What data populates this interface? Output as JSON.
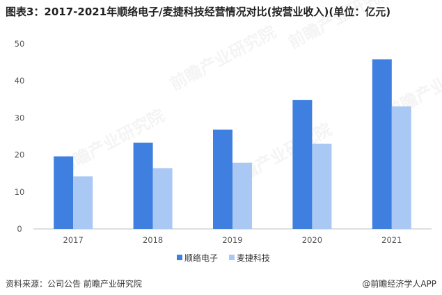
{
  "title": "图表3：2017-2021年顺络电子/麦捷科技经营情况对比(按营业收入)(单位：亿元)",
  "footer": {
    "source": "资料来源：公司公告 前瞻产业研究院",
    "brand": "@前瞻经济学人APP"
  },
  "watermark": "前瞻产业研究院",
  "colors": {
    "series1": "#3f7fe0",
    "series2": "#a9c8f3",
    "axis": "#bfbfbf"
  },
  "chart_data": {
    "type": "bar",
    "title": "图表3：2017-2021年顺络电子/麦捷科技经营情况对比(按营业收入)(单位：亿元)",
    "categories": [
      "2017",
      "2018",
      "2019",
      "2020",
      "2021"
    ],
    "series": [
      {
        "name": "顺络电子",
        "values": [
          19.6,
          23.3,
          26.8,
          34.8,
          45.8
        ]
      },
      {
        "name": "麦捷科技",
        "values": [
          14.2,
          16.4,
          17.9,
          23.0,
          33.1
        ]
      }
    ],
    "ylim": [
      0,
      50
    ],
    "yticks": [
      "0",
      "10",
      "20",
      "30",
      "40",
      "50"
    ],
    "legend_position": "bottom",
    "grid": false
  }
}
